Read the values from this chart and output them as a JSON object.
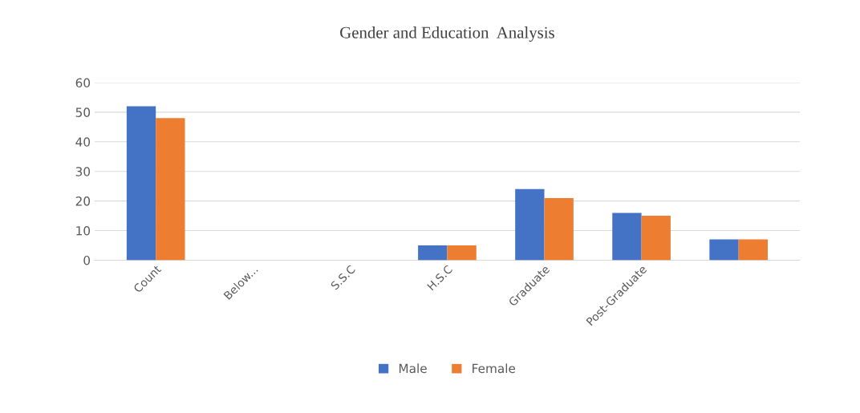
{
  "chart_data": {
    "type": "bar",
    "title": "Gender and Education  Analysis",
    "categories": [
      "Count",
      "Below...",
      "S.S.C",
      "H.S.C",
      "Graduate",
      "Post-Graduate",
      null
    ],
    "series": [
      {
        "name": "Male",
        "color": "#4472c4",
        "values": [
          52,
          0,
          0,
          5,
          24,
          16,
          7
        ]
      },
      {
        "name": "Female",
        "color": "#ed7d31",
        "values": [
          48,
          0,
          0,
          5,
          21,
          15,
          7
        ]
      }
    ],
    "ylim": [
      0,
      60
    ],
    "yticks": [
      0,
      10,
      20,
      30,
      40,
      50,
      60
    ],
    "grid": "y",
    "legend": "bottom"
  }
}
